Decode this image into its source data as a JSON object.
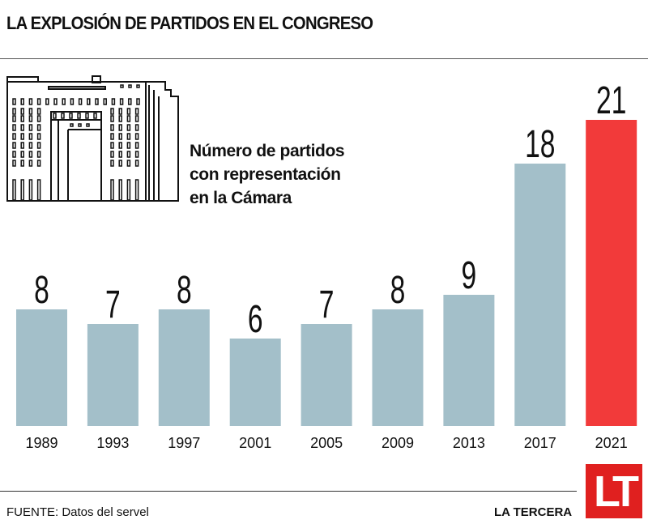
{
  "title": "LA EXPLOSIÓN DE PARTIDOS EN EL CONGRESO",
  "subtitle_lines": [
    "Número de partidos",
    "con representación",
    "en la Cámara"
  ],
  "footer": {
    "source": "FUENTE: Datos del servel",
    "brand": "LA TERCERA",
    "logo_text": "LT"
  },
  "colors": {
    "bar": "#a3bfc9",
    "highlight": "#f23a3a",
    "logo": "#e0201f"
  },
  "chart_data": {
    "type": "bar",
    "title": "LA EXPLOSIÓN DE PARTIDOS EN EL CONGRESO",
    "subtitle": "Número de partidos con representación en la Cámara",
    "categories": [
      "1989",
      "1993",
      "1997",
      "2001",
      "2005",
      "2009",
      "2013",
      "2017",
      "2021"
    ],
    "values": [
      8,
      7,
      8,
      6,
      7,
      8,
      9,
      18,
      21
    ],
    "highlight_index": 8,
    "xlabel": "",
    "ylabel": "",
    "ylim": [
      0,
      21
    ],
    "grid": false
  }
}
